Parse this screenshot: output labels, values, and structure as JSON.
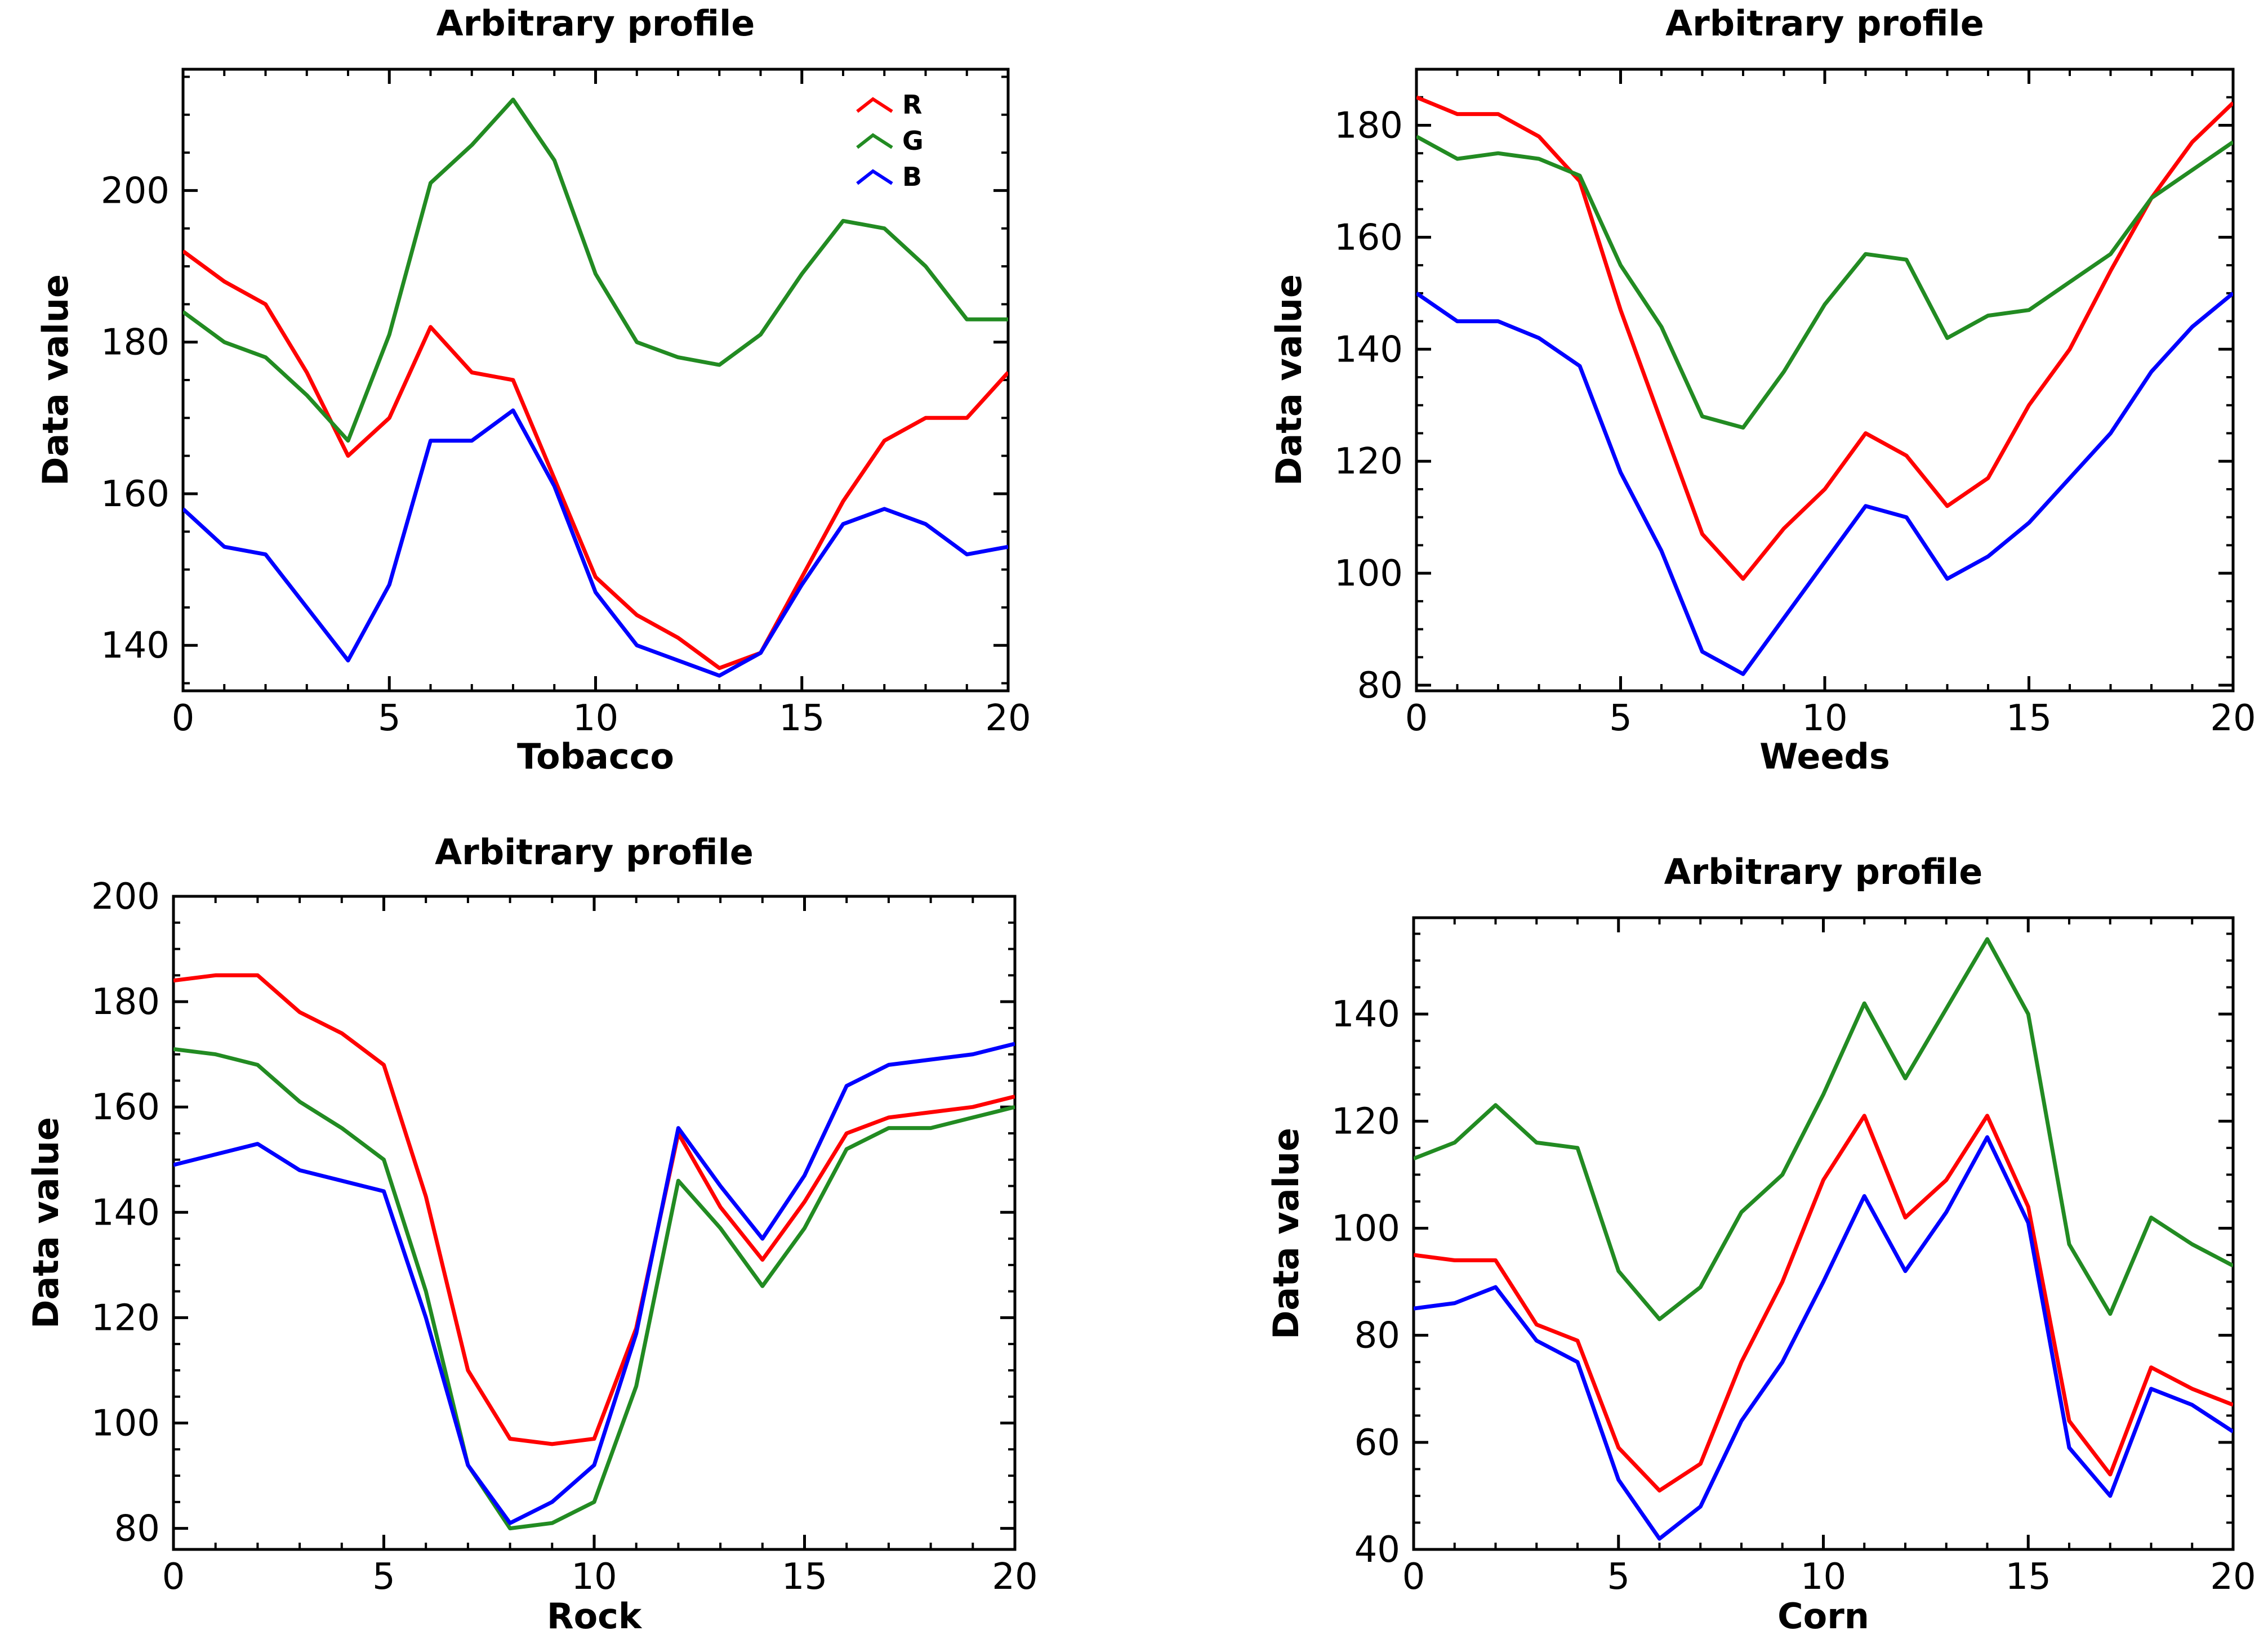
{
  "chart_data": [
    {
      "type": "line",
      "title": "Arbitrary profile",
      "xlabel": "Tobacco",
      "ylabel": "Data value",
      "xlim": [
        0,
        20
      ],
      "ylim": [
        134,
        216
      ],
      "xticks": [
        0,
        5,
        10,
        15,
        20
      ],
      "xtick_labels": [
        "0",
        "5",
        "10",
        "15",
        "20"
      ],
      "yticks": [
        140,
        160,
        180,
        200
      ],
      "ytick_labels": [
        "140",
        "160",
        "180",
        "200"
      ],
      "grid": false,
      "legend": "top-right",
      "x": [
        0,
        1,
        2,
        3,
        4,
        5,
        6,
        7,
        8,
        9,
        10,
        11,
        12,
        13,
        14,
        15,
        16,
        17,
        18,
        19,
        20
      ],
      "series": [
        {
          "name": "R",
          "color": "#ff0000",
          "values": [
            192,
            188,
            185,
            176,
            165,
            170,
            182,
            176,
            175,
            162,
            149,
            144,
            141,
            137,
            139,
            149,
            159,
            167,
            170,
            170,
            176
          ]
        },
        {
          "name": "G",
          "color": "#228b22",
          "values": [
            184,
            180,
            178,
            173,
            167,
            181,
            201,
            206,
            212,
            204,
            189,
            180,
            178,
            177,
            181,
            189,
            196,
            195,
            190,
            183,
            183
          ]
        },
        {
          "name": "B",
          "color": "#0000ff",
          "values": [
            158,
            153,
            152,
            145,
            138,
            148,
            167,
            167,
            171,
            161,
            147,
            140,
            138,
            136,
            139,
            148,
            156,
            158,
            156,
            152,
            153
          ]
        }
      ]
    },
    {
      "type": "line",
      "title": "Arbitrary profile",
      "xlabel": "Weeds",
      "ylabel": "Data value",
      "xlim": [
        0,
        20
      ],
      "ylim": [
        79,
        190
      ],
      "xticks": [
        0,
        5,
        10,
        15,
        20
      ],
      "xtick_labels": [
        "0",
        "5",
        "10",
        "15",
        "20"
      ],
      "yticks": [
        80,
        100,
        120,
        140,
        160,
        180
      ],
      "ytick_labels": [
        "80",
        "100",
        "120",
        "140",
        "160",
        "180"
      ],
      "grid": false,
      "x": [
        0,
        1,
        2,
        3,
        4,
        5,
        6,
        7,
        8,
        9,
        10,
        11,
        12,
        13,
        14,
        15,
        16,
        17,
        18,
        19,
        20
      ],
      "series": [
        {
          "name": "R",
          "color": "#ff0000",
          "values": [
            185,
            182,
            182,
            178,
            170,
            147,
            127,
            107,
            99,
            108,
            115,
            125,
            121,
            112,
            117,
            130,
            140,
            154,
            167,
            177,
            184
          ]
        },
        {
          "name": "G",
          "color": "#228b22",
          "values": [
            178,
            174,
            175,
            174,
            171,
            155,
            144,
            128,
            126,
            136,
            148,
            157,
            156,
            142,
            146,
            147,
            152,
            157,
            167,
            172,
            177
          ]
        },
        {
          "name": "B",
          "color": "#0000ff",
          "values": [
            150,
            145,
            145,
            142,
            137,
            118,
            104,
            86,
            82,
            92,
            102,
            112,
            110,
            99,
            103,
            109,
            117,
            125,
            136,
            144,
            150
          ]
        }
      ]
    },
    {
      "type": "line",
      "title": "Arbitrary profile",
      "xlabel": "Rock",
      "ylabel": "Data value",
      "xlim": [
        0,
        20
      ],
      "ylim": [
        76,
        200
      ],
      "xticks": [
        0,
        5,
        10,
        15,
        20
      ],
      "xtick_labels": [
        "0",
        "5",
        "10",
        "15",
        "20"
      ],
      "yticks": [
        80,
        100,
        120,
        140,
        160,
        180,
        200
      ],
      "ytick_labels": [
        "80",
        "100",
        "120",
        "140",
        "160",
        "180",
        "200"
      ],
      "grid": false,
      "x": [
        0,
        1,
        2,
        3,
        4,
        5,
        6,
        7,
        8,
        9,
        10,
        11,
        12,
        13,
        14,
        15,
        16,
        17,
        18,
        19,
        20
      ],
      "series": [
        {
          "name": "R",
          "color": "#ff0000",
          "values": [
            184,
            185,
            185,
            178,
            174,
            168,
            143,
            110,
            97,
            96,
            97,
            118,
            155,
            141,
            131,
            142,
            155,
            158,
            159,
            160,
            162
          ]
        },
        {
          "name": "G",
          "color": "#228b22",
          "values": [
            171,
            170,
            168,
            161,
            156,
            150,
            125,
            92,
            80,
            81,
            85,
            107,
            146,
            137,
            126,
            137,
            152,
            156,
            156,
            158,
            160
          ]
        },
        {
          "name": "B",
          "color": "#0000ff",
          "values": [
            149,
            151,
            153,
            148,
            146,
            144,
            120,
            92,
            81,
            85,
            92,
            117,
            156,
            145,
            135,
            147,
            164,
            168,
            169,
            170,
            172
          ]
        }
      ]
    },
    {
      "type": "line",
      "title": "Arbitrary profile",
      "xlabel": "Corn",
      "ylabel": "Data value",
      "xlim": [
        0,
        20
      ],
      "ylim": [
        40,
        158
      ],
      "xticks": [
        0,
        5,
        10,
        15,
        20
      ],
      "xtick_labels": [
        "0",
        "5",
        "10",
        "15",
        "20"
      ],
      "yticks": [
        40,
        60,
        80,
        100,
        120,
        140
      ],
      "ytick_labels": [
        "40",
        "60",
        "80",
        "100",
        "120",
        "140"
      ],
      "grid": false,
      "x": [
        0,
        1,
        2,
        3,
        4,
        5,
        6,
        7,
        8,
        9,
        10,
        11,
        12,
        13,
        14,
        15,
        16,
        17,
        18,
        19,
        20
      ],
      "series": [
        {
          "name": "R",
          "color": "#ff0000",
          "values": [
            95,
            94,
            94,
            82,
            79,
            59,
            51,
            56,
            75,
            90,
            109,
            121,
            102,
            109,
            121,
            104,
            64,
            54,
            74,
            70,
            67
          ]
        },
        {
          "name": "G",
          "color": "#228b22",
          "values": [
            113,
            116,
            123,
            116,
            115,
            92,
            83,
            89,
            103,
            110,
            125,
            142,
            128,
            141,
            154,
            140,
            97,
            84,
            102,
            97,
            93
          ]
        },
        {
          "name": "B",
          "color": "#0000ff",
          "values": [
            85,
            86,
            89,
            79,
            75,
            53,
            42,
            48,
            64,
            75,
            90,
            106,
            92,
            103,
            117,
            101,
            59,
            50,
            70,
            67,
            62
          ]
        }
      ]
    }
  ]
}
